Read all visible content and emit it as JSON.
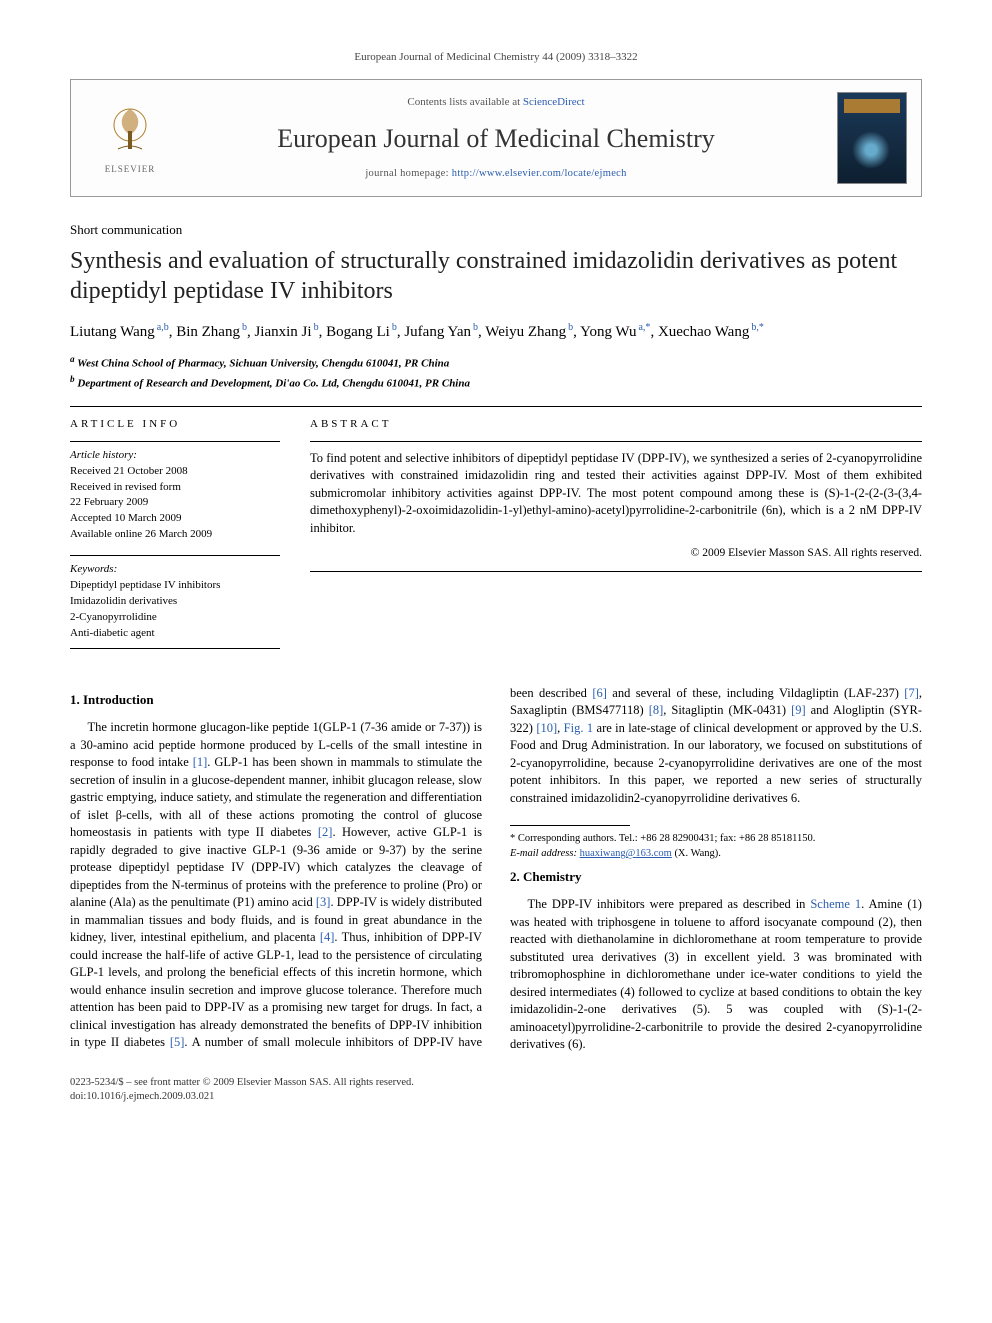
{
  "runningHead": "European Journal of Medicinal Chemistry 44 (2009) 3318–3322",
  "masthead": {
    "contentsLine_pre": "Contents lists available at ",
    "contentsLine_link": "ScienceDirect",
    "journalName": "European Journal of Medicinal Chemistry",
    "homepage_pre": "journal homepage: ",
    "homepage_url": "http://www.elsevier.com/locate/ejmech",
    "publisherLogoText": "ELSEVIER"
  },
  "articleType": "Short communication",
  "title": "Synthesis and evaluation of structurally constrained imidazolidin derivatives as potent dipeptidyl peptidase IV inhibitors",
  "authors": [
    {
      "name": "Liutang Wang",
      "affMark": "a,b"
    },
    {
      "name": "Bin Zhang",
      "affMark": "b"
    },
    {
      "name": "Jianxin Ji",
      "affMark": "b"
    },
    {
      "name": "Bogang Li",
      "affMark": "b"
    },
    {
      "name": "Jufang Yan",
      "affMark": "b"
    },
    {
      "name": "Weiyu Zhang",
      "affMark": "b"
    },
    {
      "name": "Yong Wu",
      "affMark": "a,*"
    },
    {
      "name": "Xuechao Wang",
      "affMark": "b,*"
    }
  ],
  "affiliations": {
    "a": "West China School of Pharmacy, Sichuan University, Chengdu 610041, PR China",
    "b": "Department of Research and Development, Di'ao Co. Ltd, Chengdu 610041, PR China"
  },
  "articleInfo": {
    "heading": "ARTICLE INFO",
    "historyHead": "Article history:",
    "history": [
      "Received 21 October 2008",
      "Received in revised form",
      "22 February 2009",
      "Accepted 10 March 2009",
      "Available online 26 March 2009"
    ],
    "keywordsHead": "Keywords:",
    "keywords": [
      "Dipeptidyl peptidase IV inhibitors",
      "Imidazolidin derivatives",
      "2-Cyanopyrrolidine",
      "Anti-diabetic agent"
    ]
  },
  "abstract": {
    "heading": "ABSTRACT",
    "text": "To find potent and selective inhibitors of dipeptidyl peptidase IV (DPP-IV), we synthesized a series of 2-cyanopyrrolidine derivatives with constrained imidazolidin ring and tested their activities against DPP-IV. Most of them exhibited submicromolar inhibitory activities against DPP-IV. The most potent compound among these is (S)-1-(2-(2-(3-(3,4-dimethoxyphenyl)-2-oxoimidazolidin-1-yl)ethyl-amino)-acetyl)pyrrolidine-2-carbonitrile (6n), which is a 2 nM DPP-IV inhibitor.",
    "copyright": "© 2009 Elsevier Masson SAS. All rights reserved."
  },
  "sections": {
    "introHead": "1. Introduction",
    "introText": "The incretin hormone glucagon-like peptide 1(GLP-1 (7-36 amide or 7-37)) is a 30-amino acid peptide hormone produced by L-cells of the small intestine in response to food intake [1]. GLP-1 has been shown in mammals to stimulate the secretion of insulin in a glucose-dependent manner, inhibit glucagon release, slow gastric emptying, induce satiety, and stimulate the regeneration and differentiation of islet β-cells, with all of these actions promoting the control of glucose homeostasis in patients with type II diabetes [2]. However, active GLP-1 is rapidly degraded to give inactive GLP-1 (9-36 amide or 9-37) by the serine protease dipeptidyl peptidase IV (DPP-IV) which catalyzes the cleavage of dipeptides from the N-terminus of proteins with the preference to proline (Pro) or alanine (Ala) as the penultimate (P1) amino acid [3]. DPP-IV is widely distributed in mammalian tissues and body fluids, and is found in great abundance in the kidney, liver, intestinal epithelium, and placenta [4]. Thus, inhibition of DPP-IV could increase the half-life of active GLP-1, lead to the persistence of circulating GLP-1 levels, and prolong the beneficial effects of this incretin hormone, which would enhance insulin secretion and improve glucose tolerance. Therefore much attention has been paid to DPP-IV as a promising new target for drugs. In fact, a clinical investigation has already demonstrated the benefits of DPP-IV inhibition in type II diabetes [5]. A number of small molecule inhibitors of DPP-IV have been described [6] and several of these, including Vildagliptin (LAF-237) [7], Saxagliptin (BMS477118) [8], Sitagliptin (MK-0431) [9] and Alogliptin (SYR-322) [10], Fig. 1 are in late-stage of clinical development or approved by the U.S. Food and Drug Administration. In our laboratory, we focused on substitutions of 2-cyanopyrrolidine, because 2-cyanopyrrolidine derivatives are one of the most potent inhibitors. In this paper, we reported a new series of structurally constrained imidazolidin2-cyanopyrrolidine derivatives 6.",
    "chemHead": "2. Chemistry",
    "chemText": "The DPP-IV inhibitors were prepared as described in Scheme 1. Amine (1) was heated with triphosgene in toluene to afford isocyanate compound (2), then reacted with diethanolamine in dichloromethane at room temperature to provide substituted urea derivatives (3) in excellent yield. 3 was brominated with tribromophosphine in dichloromethane under ice-water conditions to yield the desired intermediates (4) followed to cyclize at based conditions to obtain the key imidazolidin-2-one derivatives (5). 5 was coupled with (S)-1-(2-aminoacetyl)pyrrolidine-2-carbonitrile to provide the desired 2-cyanopyrrolidine derivatives (6)."
  },
  "footnotes": {
    "corr": "* Corresponding authors. Tel.: +86 28 82900431; fax: +86 28 85181150.",
    "emailLabel": "E-mail address:",
    "email": "huaxiwang@163.com",
    "emailOwner": "(X. Wang)."
  },
  "bottom": {
    "line1": "0223-5234/$ – see front matter © 2009 Elsevier Masson SAS. All rights reserved.",
    "line2": "doi:10.1016/j.ejmech.2009.03.021"
  },
  "colors": {
    "link": "#2a5db0",
    "text": "#000000",
    "muted": "#555555"
  }
}
